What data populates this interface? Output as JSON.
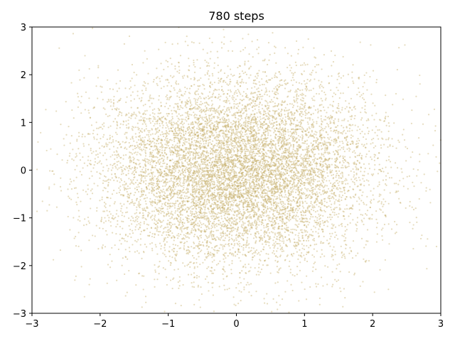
{
  "chart_data": {
    "type": "scatter",
    "title": "780 steps",
    "xlabel": "",
    "ylabel": "",
    "xlim": [
      -3,
      3
    ],
    "ylim": [
      -3,
      3
    ],
    "xticks": [
      -3,
      -2,
      -1,
      0,
      1,
      2,
      3
    ],
    "yticks": [
      -3,
      -2,
      -1,
      0,
      1,
      2,
      3
    ],
    "xtick_labels": [
      "−3",
      "−2",
      "−1",
      "0",
      "1",
      "2",
      "3"
    ],
    "ytick_labels": [
      "−3",
      "−2",
      "−1",
      "0",
      "1",
      "2",
      "3"
    ],
    "grid": false,
    "legend": "none",
    "series": [
      {
        "color": "#c8b16f",
        "opacity": 0.45,
        "distribution": "2D standard normal (mean 0, std 1), approx. 10000 points",
        "points": "generated"
      }
    ]
  }
}
